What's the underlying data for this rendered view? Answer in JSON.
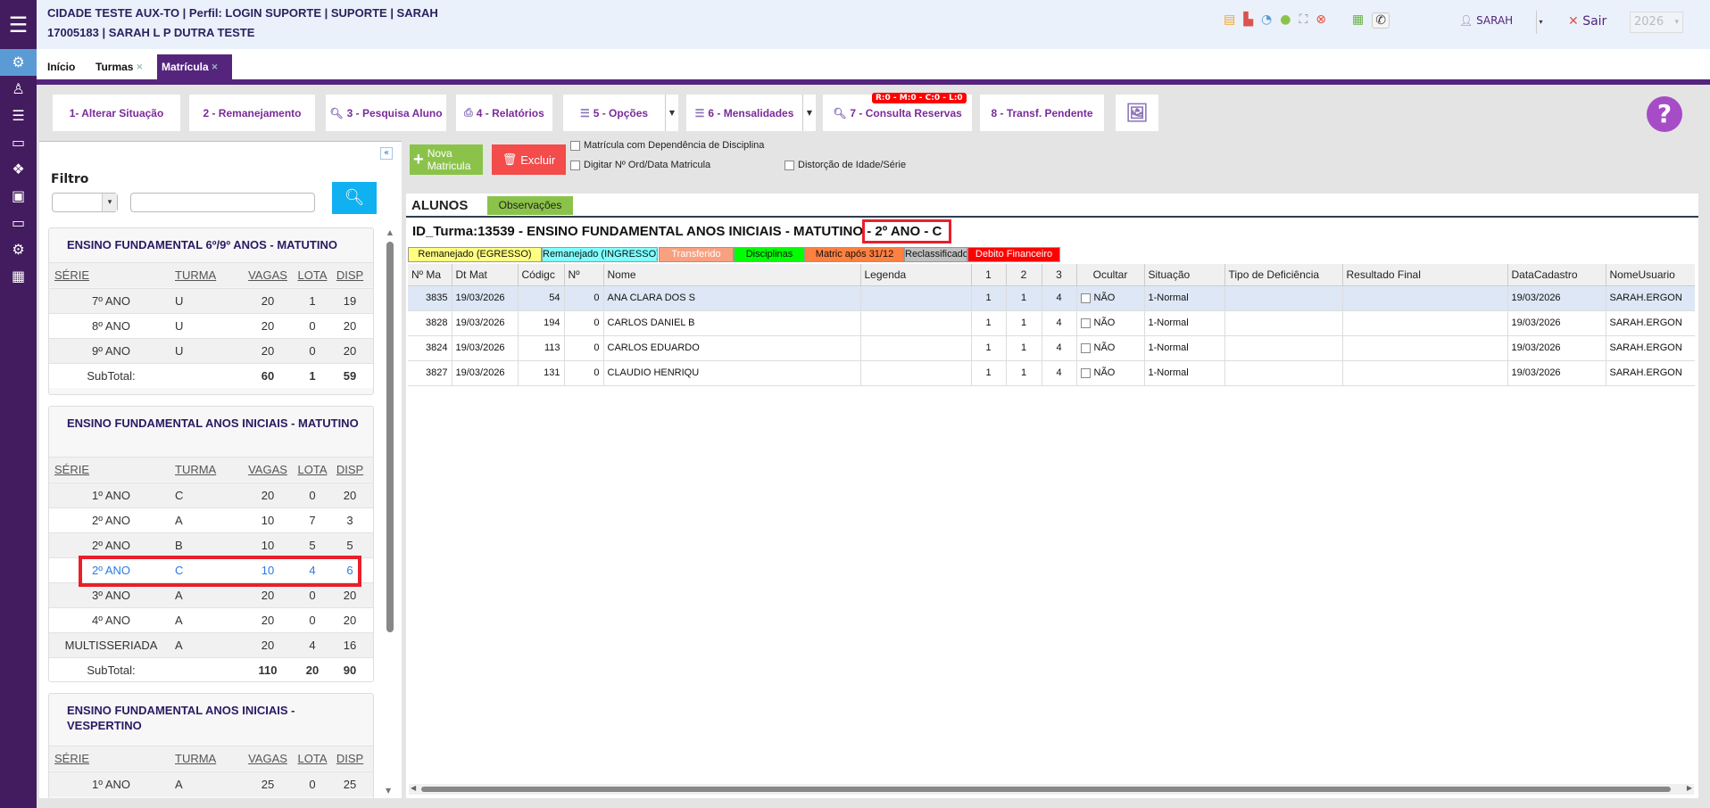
{
  "header": {
    "line1": "CIDADE TESTE AUX-TO | Perfil: LOGIN SUPORTE | SUPORTE | SARAH",
    "line2": "17005183 | SARAH L P DUTRA TESTE",
    "user": "SARAH",
    "logout": "Sair",
    "year": "2026"
  },
  "tabs": [
    {
      "label": "Início"
    },
    {
      "label": "Turmas"
    },
    {
      "label": "Matrícula"
    }
  ],
  "toolbar": {
    "b1": "1- Alterar Situação",
    "b2": "2 - Remanejamento",
    "b3": "3 - Pesquisa Aluno",
    "b4": "4 - Relatórios",
    "b5": "5 - Opções",
    "b6": "6 - Mensalidades",
    "b7": "7 - Consulta Reservas",
    "b7_badge": "R:0 - M:0 - C:0 - L:0",
    "b8": "8 - Transf. Pendente",
    "help": "?"
  },
  "filter": {
    "label": "Filtro",
    "select_value": "",
    "input_value": ""
  },
  "cards": [
    {
      "title": "ENSINO FUNDAMENTAL 6º/9º ANOS - MATUTINO",
      "headers": [
        "SÉRIE",
        "TURMA",
        "VAGAS",
        "LOTA",
        "DISP"
      ],
      "rows": [
        [
          "7º ANO",
          "U",
          "20",
          "1",
          "19"
        ],
        [
          "8º ANO",
          "U",
          "20",
          "0",
          "20"
        ],
        [
          "9º ANO",
          "U",
          "20",
          "0",
          "20"
        ]
      ],
      "subtotal": {
        "label": "SubTotal:",
        "vagas": "60",
        "lota": "1",
        "disp": "59"
      }
    },
    {
      "title": "ENSINO FUNDAMENTAL ANOS INICIAIS - MATUTINO",
      "headers": [
        "SÉRIE",
        "TURMA",
        "VAGAS",
        "LOTA",
        "DISP"
      ],
      "rows": [
        [
          "1º ANO",
          "C",
          "20",
          "0",
          "20"
        ],
        [
          "2º ANO",
          "A",
          "10",
          "7",
          "3"
        ],
        [
          "2º ANO",
          "B",
          "10",
          "5",
          "5"
        ],
        [
          "2º ANO",
          "C",
          "10",
          "4",
          "6"
        ],
        [
          "3º ANO",
          "A",
          "20",
          "0",
          "20"
        ],
        [
          "4º ANO",
          "A",
          "20",
          "0",
          "20"
        ],
        [
          "MULTISSERIADA",
          "A",
          "20",
          "4",
          "16"
        ]
      ],
      "subtotal": {
        "label": "SubTotal:",
        "vagas": "110",
        "lota": "20",
        "disp": "90"
      }
    },
    {
      "title": "ENSINO FUNDAMENTAL ANOS INICIAIS - VESPERTINO",
      "headers": [
        "SÉRIE",
        "TURMA",
        "VAGAS",
        "LOTA",
        "DISP"
      ],
      "rows": [
        [
          "1º ANO",
          "A",
          "25",
          "0",
          "25"
        ]
      ]
    }
  ],
  "actions": {
    "nova": "Nova Matricula",
    "excluir": "Excluir",
    "chk1": "Matrícula com Dependência de Disciplina",
    "chk2": "Digitar Nº Ord/Data Matricula",
    "chk3": "Distorção de Idade/Série"
  },
  "alunos": {
    "tab": "ALUNOS",
    "obs": "Observações",
    "title_main": "ID_Turma:13539 - ENSINO FUNDAMENTAL ANOS INICIAIS - MATUTINO ",
    "title_hl": "- 2º ANO - C",
    "legend": [
      {
        "label": "Remanejado (EGRESSO)",
        "color": "#ffff80"
      },
      {
        "label": "Remanejado (INGRESSO)",
        "color": "#80ffff"
      },
      {
        "label": "Transferido",
        "color": "#f9a080"
      },
      {
        "label": "Disciplinas",
        "color": "#00ff00"
      },
      {
        "label": "Matric após 31/12",
        "color": "#ff8040"
      },
      {
        "label": "Reclassificado",
        "color": "#c0c0c0"
      },
      {
        "label": "Debito Financeiro",
        "color": "#ff0000"
      }
    ],
    "columns": [
      "Nº Ma",
      "Dt Mat",
      "Códigc",
      "Nº",
      "Nome",
      "Legenda",
      "1",
      "2",
      "3",
      "Ocultar",
      "Situação",
      "Tipo de Deficiência",
      "Resultado Final",
      "DataCadastro",
      "NomeUsuario"
    ],
    "rows": [
      [
        "3835",
        "19/03/2026",
        "54",
        "0",
        "ANA CLARA DOS S",
        "",
        "1",
        "1",
        "4",
        "NÃO",
        "1-Normal",
        "",
        "",
        "19/03/2026",
        "SARAH.ERGON"
      ],
      [
        "3828",
        "19/03/2026",
        "194",
        "0",
        "CARLOS DANIEL B",
        "",
        "1",
        "1",
        "4",
        "NÃO",
        "1-Normal",
        "",
        "",
        "19/03/2026",
        "SARAH.ERGON"
      ],
      [
        "3824",
        "19/03/2026",
        "113",
        "0",
        "CARLOS EDUARDO",
        "",
        "1",
        "1",
        "4",
        "NÃO",
        "1-Normal",
        "",
        "",
        "19/03/2026",
        "SARAH.ERGON"
      ],
      [
        "3827",
        "19/03/2026",
        "131",
        "0",
        "CLAUDIO HENRIQU",
        "",
        "1",
        "1",
        "4",
        "NÃO",
        "1-Normal",
        "",
        "",
        "19/03/2026",
        "SARAH.ERGON"
      ]
    ]
  },
  "colors": {
    "sidebar": "#421c5e",
    "accent": "#55257e",
    "highlight": "#e8202a",
    "selected_text": "#2a7be4"
  }
}
